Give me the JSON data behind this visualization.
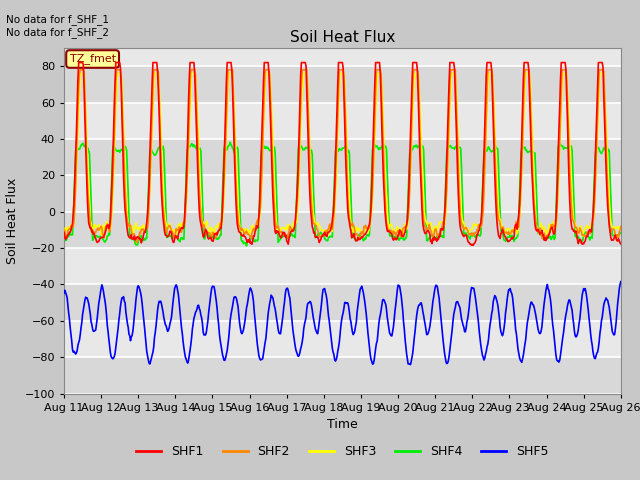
{
  "title": "Soil Heat Flux",
  "ylabel": "Soil Heat Flux",
  "xlabel": "Time",
  "ylim": [
    -100,
    90
  ],
  "yticks": [
    -100,
    -80,
    -60,
    -40,
    -20,
    0,
    20,
    40,
    60,
    80
  ],
  "annotation_text": "No data for f_SHF_1\nNo data for f_SHF_2",
  "tz_label": "TZ_fmet",
  "colors": {
    "SHF1": "#ff0000",
    "SHF2": "#ff8800",
    "SHF3": "#ffff00",
    "SHF4": "#00ee00",
    "SHF5": "#0000ff"
  },
  "fig_bg": "#c8c8c8",
  "plot_bg": "#e8e8e8",
  "title_fontsize": 11,
  "label_fontsize": 9,
  "tick_fontsize": 8
}
